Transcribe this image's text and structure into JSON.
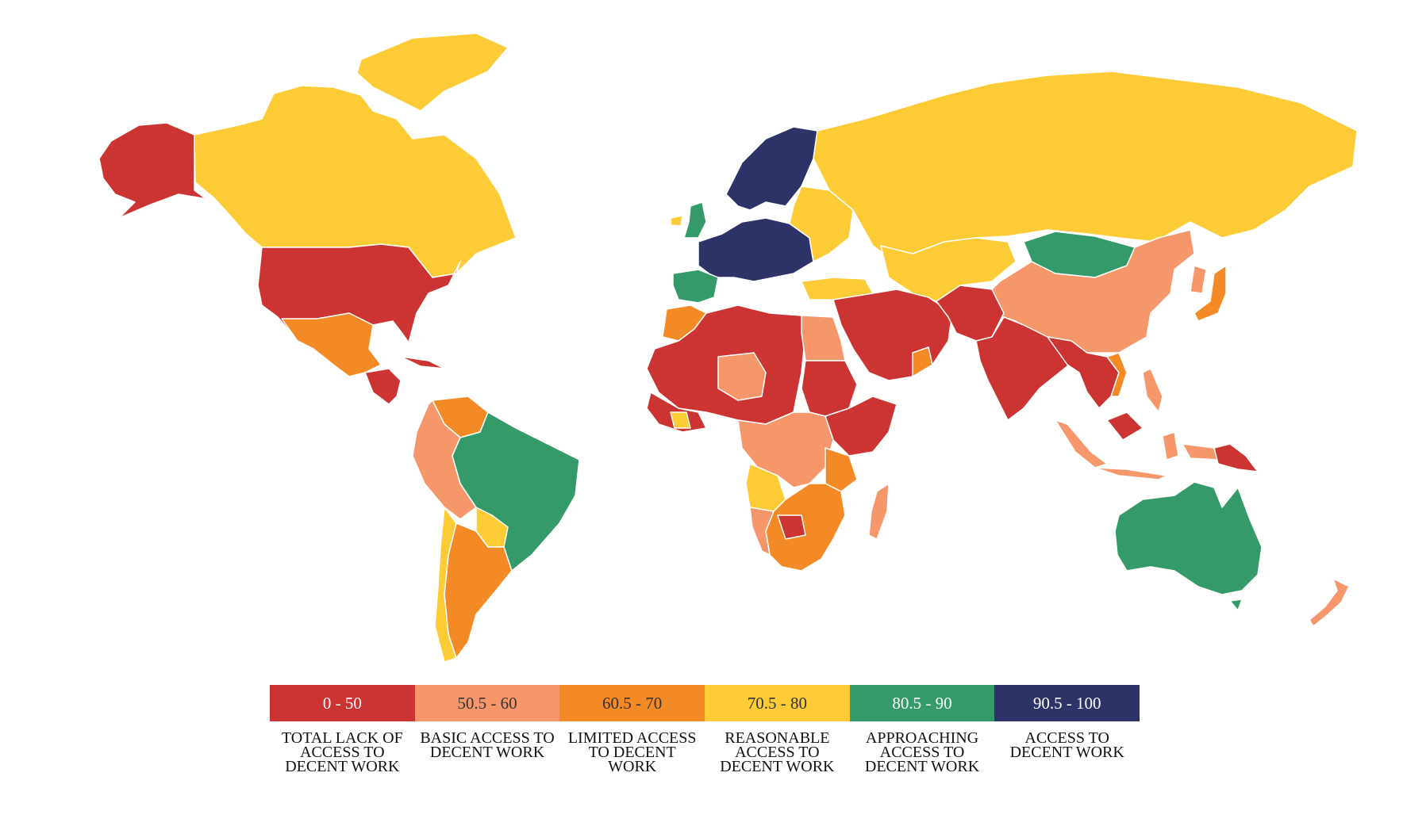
{
  "legend": [
    {
      "range": "0 - 50",
      "label": "TOTAL LACK OF ACCESS TO DECENT WORK",
      "color": "#cc3333",
      "text_color": "#ffffff"
    },
    {
      "range": "50.5 - 60",
      "label": "BASIC ACCESS TO DECENT WORK",
      "color": "#f5976a",
      "text_color": "#333333"
    },
    {
      "range": "60.5 - 70",
      "label": "LIMITED ACCESS TO DECENT WORK",
      "color": "#f48a25",
      "text_color": "#333333"
    },
    {
      "range": "70.5 - 80",
      "label": "REASONABLE ACCESS TO DECENT WORK",
      "color": "#fdcb35",
      "text_color": "#333333"
    },
    {
      "range": "80.5 - 90",
      "label": "APPROACHING ACCESS TO DECENT WORK",
      "color": "#349a6a",
      "text_color": "#ffffff"
    },
    {
      "range": "90.5 - 100",
      "label": "ACCESS TO DECENT WORK",
      "color": "#2d3367",
      "text_color": "#ffffff"
    }
  ],
  "regions": [
    {
      "name": "alaska",
      "class": 0
    },
    {
      "name": "canada",
      "class": 3
    },
    {
      "name": "usa",
      "class": 0
    },
    {
      "name": "mexico",
      "class": 2
    },
    {
      "name": "central-america",
      "class": 0
    },
    {
      "name": "colombia-peru",
      "class": 1
    },
    {
      "name": "venezuela",
      "class": 2
    },
    {
      "name": "brazil",
      "class": 4
    },
    {
      "name": "argentina",
      "class": 2
    },
    {
      "name": "chile",
      "class": 3
    },
    {
      "name": "greenland",
      "class": 3
    },
    {
      "name": "scandinavia",
      "class": 5
    },
    {
      "name": "western-europe",
      "class": 5
    },
    {
      "name": "uk",
      "class": 4
    },
    {
      "name": "iberia",
      "class": 4
    },
    {
      "name": "eastern-europe",
      "class": 3
    },
    {
      "name": "russia",
      "class": 3
    },
    {
      "name": "mongolia",
      "class": 4
    },
    {
      "name": "china",
      "class": 1
    },
    {
      "name": "japan",
      "class": 2
    },
    {
      "name": "middle-east",
      "class": 0
    },
    {
      "name": "india",
      "class": 0
    },
    {
      "name": "southeast-asia",
      "class": 0
    },
    {
      "name": "indonesia",
      "class": 1
    },
    {
      "name": "papua-new-guinea",
      "class": 0
    },
    {
      "name": "australia",
      "class": 4
    },
    {
      "name": "new-zealand",
      "class": 1
    },
    {
      "name": "north-africa",
      "class": 0
    },
    {
      "name": "morocco",
      "class": 2
    },
    {
      "name": "egypt",
      "class": 1
    },
    {
      "name": "west-africa",
      "class": 0
    },
    {
      "name": "central-africa",
      "class": 1
    },
    {
      "name": "east-africa",
      "class": 0
    },
    {
      "name": "angola",
      "class": 3
    },
    {
      "name": "southern-africa",
      "class": 2
    },
    {
      "name": "madagascar",
      "class": 1
    }
  ]
}
